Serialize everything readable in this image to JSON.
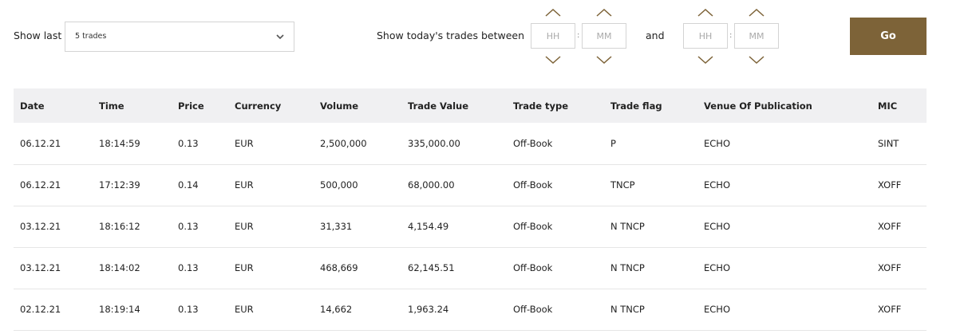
{
  "filters": {
    "show_last_label": "Show last",
    "show_last_value": "5 trades",
    "between_label": "Show today's trades between",
    "and_label": "and",
    "from": {
      "hour_placeholder": "HH",
      "minute_placeholder": "MM"
    },
    "to": {
      "hour_placeholder": "HH",
      "minute_placeholder": "MM"
    },
    "colon": ":",
    "go_label": "Go",
    "accent_color": "#7d6338",
    "arrow_color": "#7d6338"
  },
  "table": {
    "columns": [
      "Date",
      "Time",
      "Price",
      "Currency",
      "Volume",
      "Trade Value",
      "Trade type",
      "Trade flag",
      "Venue Of Publication",
      "MIC"
    ],
    "rows": [
      [
        "06.12.21",
        "18:14:59",
        "0.13",
        "EUR",
        "2,500,000",
        "335,000.00",
        "Off-Book",
        "P",
        "ECHO",
        "SINT"
      ],
      [
        "06.12.21",
        "17:12:39",
        "0.14",
        "EUR",
        "500,000",
        "68,000.00",
        "Off-Book",
        "TNCP",
        "ECHO",
        "XOFF"
      ],
      [
        "03.12.21",
        "18:16:12",
        "0.13",
        "EUR",
        "31,331",
        "4,154.49",
        "Off-Book",
        "N TNCP",
        "ECHO",
        "XOFF"
      ],
      [
        "03.12.21",
        "18:14:02",
        "0.13",
        "EUR",
        "468,669",
        "62,145.51",
        "Off-Book",
        "N TNCP",
        "ECHO",
        "XOFF"
      ],
      [
        "02.12.21",
        "18:19:14",
        "0.13",
        "EUR",
        "14,662",
        "1,963.24",
        "Off-Book",
        "N TNCP",
        "ECHO",
        "XOFF"
      ]
    ]
  }
}
